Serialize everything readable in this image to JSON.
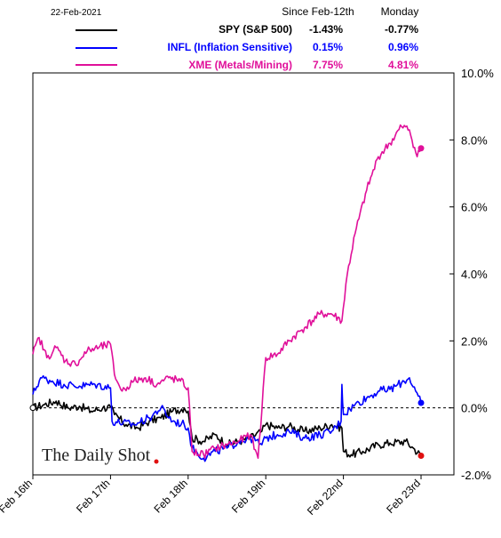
{
  "chart_data": {
    "type": "line",
    "date": "22-Feb-2021",
    "columns": [
      "Since Feb-12th",
      "Monday"
    ],
    "series": [
      {
        "name": "SPY (S&P 500)",
        "color": "#000000",
        "since": "-1.43%",
        "monday": "-0.77%",
        "points": [
          [
            0,
            0.0
          ],
          [
            0.15,
            0.1
          ],
          [
            0.3,
            0.2
          ],
          [
            0.45,
            0.0
          ],
          [
            0.6,
            0.05
          ],
          [
            0.75,
            -0.1
          ],
          [
            0.9,
            0.0
          ],
          [
            1.0,
            0.02
          ],
          [
            1.05,
            -0.2
          ],
          [
            1.2,
            -0.5
          ],
          [
            1.35,
            -0.6
          ],
          [
            1.5,
            -0.4
          ],
          [
            1.65,
            -0.3
          ],
          [
            1.8,
            -0.1
          ],
          [
            1.95,
            0.0
          ],
          [
            2.0,
            -0.1
          ],
          [
            2.05,
            -0.9
          ],
          [
            2.2,
            -1.0
          ],
          [
            2.35,
            -0.8
          ],
          [
            2.5,
            -1.1
          ],
          [
            2.65,
            -1.0
          ],
          [
            2.8,
            -0.9
          ],
          [
            2.95,
            -0.7
          ],
          [
            3.0,
            -0.5
          ],
          [
            3.15,
            -0.6
          ],
          [
            3.3,
            -0.55
          ],
          [
            3.5,
            -0.7
          ],
          [
            3.7,
            -0.6
          ],
          [
            3.85,
            -0.5
          ],
          [
            3.98,
            -0.6
          ],
          [
            4.0,
            -1.3
          ],
          [
            4.1,
            -1.4
          ],
          [
            4.25,
            -1.3
          ],
          [
            4.45,
            -1.1
          ],
          [
            4.6,
            -1.05
          ],
          [
            4.8,
            -1.0
          ],
          [
            4.9,
            -1.2
          ],
          [
            5.0,
            -1.43
          ]
        ]
      },
      {
        "name": "INFL (Inflation Sensitive)",
        "color": "#0000ff",
        "since": "0.15%",
        "monday": "0.96%",
        "points": [
          [
            0,
            0.4
          ],
          [
            0.1,
            0.9
          ],
          [
            0.25,
            0.8
          ],
          [
            0.4,
            0.7
          ],
          [
            0.6,
            0.65
          ],
          [
            0.8,
            0.7
          ],
          [
            1.0,
            0.6
          ],
          [
            1.02,
            -0.4
          ],
          [
            1.3,
            -0.5
          ],
          [
            1.5,
            -0.3
          ],
          [
            1.65,
            0.0
          ],
          [
            1.8,
            -0.4
          ],
          [
            1.95,
            -0.5
          ],
          [
            2.0,
            -0.6
          ],
          [
            2.05,
            -1.2
          ],
          [
            2.2,
            -1.5
          ],
          [
            2.35,
            -1.3
          ],
          [
            2.5,
            -1.2
          ],
          [
            2.65,
            -1.0
          ],
          [
            2.8,
            -0.9
          ],
          [
            2.95,
            -1.1
          ],
          [
            3.0,
            -0.9
          ],
          [
            3.15,
            -0.8
          ],
          [
            3.3,
            -0.7
          ],
          [
            3.5,
            -0.9
          ],
          [
            3.7,
            -0.8
          ],
          [
            3.85,
            -0.7
          ],
          [
            3.97,
            -0.4
          ],
          [
            3.98,
            0.7
          ],
          [
            4.0,
            -0.2
          ],
          [
            4.15,
            0.1
          ],
          [
            4.3,
            0.3
          ],
          [
            4.45,
            0.5
          ],
          [
            4.6,
            0.55
          ],
          [
            4.75,
            0.75
          ],
          [
            4.85,
            0.9
          ],
          [
            4.93,
            0.5
          ],
          [
            5.0,
            0.15
          ]
        ]
      },
      {
        "name": "XME (Metals/Mining)",
        "color": "#e0109a",
        "since": "7.75%",
        "monday": "4.81%",
        "points": [
          [
            0,
            1.6
          ],
          [
            0.08,
            2.1
          ],
          [
            0.18,
            1.5
          ],
          [
            0.3,
            1.8
          ],
          [
            0.42,
            1.4
          ],
          [
            0.55,
            1.3
          ],
          [
            0.7,
            1.7
          ],
          [
            0.85,
            1.8
          ],
          [
            1.0,
            1.9
          ],
          [
            1.05,
            1.0
          ],
          [
            1.15,
            0.5
          ],
          [
            1.3,
            0.8
          ],
          [
            1.45,
            0.9
          ],
          [
            1.6,
            0.7
          ],
          [
            1.75,
            0.9
          ],
          [
            1.9,
            0.8
          ],
          [
            2.0,
            0.6
          ],
          [
            2.05,
            -1.3
          ],
          [
            2.2,
            -1.4
          ],
          [
            2.35,
            -1.2
          ],
          [
            2.5,
            -1.1
          ],
          [
            2.65,
            -1.0
          ],
          [
            2.8,
            -0.8
          ],
          [
            2.9,
            -1.5
          ],
          [
            3.0,
            1.5
          ],
          [
            3.15,
            1.6
          ],
          [
            3.3,
            2.0
          ],
          [
            3.5,
            2.4
          ],
          [
            3.7,
            2.8
          ],
          [
            3.85,
            2.8
          ],
          [
            3.98,
            2.6
          ],
          [
            4.05,
            4.0
          ],
          [
            4.15,
            5.2
          ],
          [
            4.3,
            6.5
          ],
          [
            4.45,
            7.5
          ],
          [
            4.6,
            7.9
          ],
          [
            4.75,
            8.4
          ],
          [
            4.85,
            8.3
          ],
          [
            4.95,
            7.5
          ],
          [
            5.0,
            7.75
          ]
        ]
      }
    ],
    "x_ticks": [
      "Feb 16th",
      "Feb 17th",
      "Feb 18th",
      "Feb 19th",
      "Feb 22nd",
      "Feb 23rd"
    ],
    "y_ticks": [
      "10.0%",
      "8.0%",
      "6.0%",
      "4.0%",
      "2.0%",
      "0.0%",
      "-2.0%"
    ],
    "ylim": [
      -2,
      10
    ],
    "xlim": [
      0,
      5
    ],
    "grid": false,
    "legend": "top",
    "watermark": "The Daily Shot"
  }
}
